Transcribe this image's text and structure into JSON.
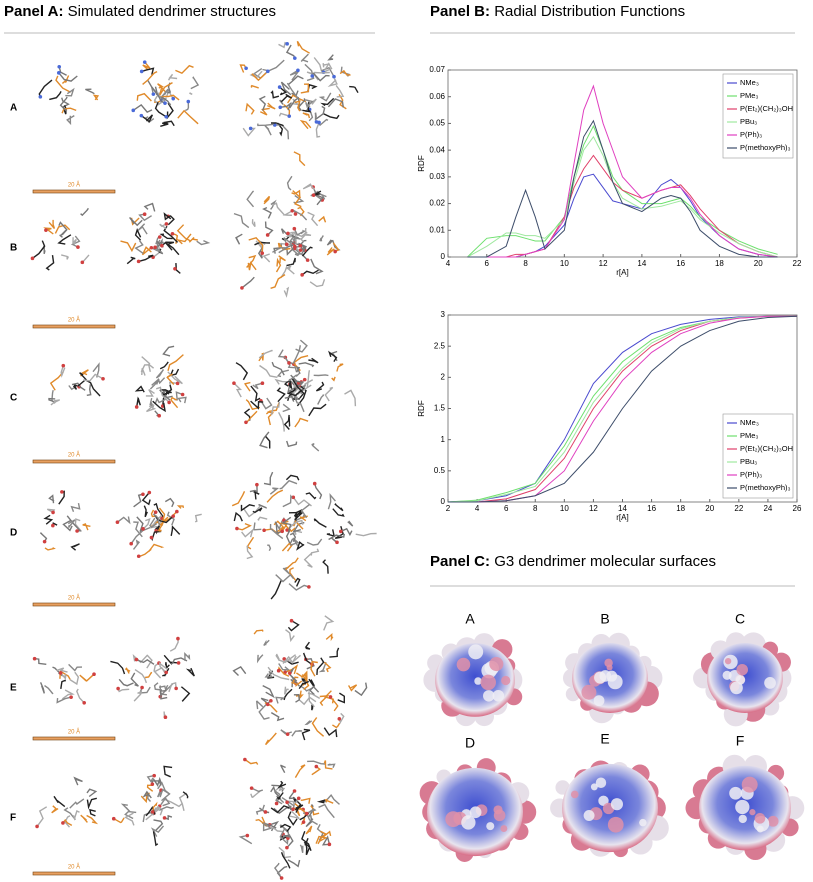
{
  "panel_a": {
    "label": "Panel A:",
    "title": "Simulated dendrimer structures",
    "rows": [
      "A",
      "B",
      "C",
      "D",
      "E",
      "F"
    ],
    "scale_label": "20 Å"
  },
  "panel_b": {
    "label": "Panel B:",
    "title": "Radial Distribution Functions"
  },
  "chart_data": [
    {
      "type": "line",
      "xlabel": "r[A]",
      "ylabel": "RDF",
      "grid": false,
      "legend": "upper right",
      "xlim": [
        4,
        22
      ],
      "xticks": [
        4,
        6,
        8,
        10,
        12,
        14,
        16,
        18,
        20,
        22
      ],
      "ylim": [
        0,
        0.07
      ],
      "yticks": [
        0,
        0.01,
        0.02,
        0.03,
        0.04,
        0.05,
        0.06,
        0.07
      ],
      "x": [
        5,
        6,
        7,
        7.5,
        8,
        8.5,
        9,
        10,
        10.5,
        11,
        11.5,
        12,
        12.5,
        13,
        14,
        15,
        15.5,
        16,
        16.5,
        17,
        18,
        19,
        20,
        21
      ],
      "series": [
        {
          "name": "NMe₃",
          "color": "#4a4acf",
          "values": [
            0,
            0,
            0,
            0,
            0.001,
            0.002,
            0.004,
            0.012,
            0.022,
            0.03,
            0.031,
            0.026,
            0.021,
            0.02,
            0.018,
            0.027,
            0.029,
            0.026,
            0.021,
            0.015,
            0.008,
            0.003,
            0.001,
            0
          ]
        },
        {
          "name": "PMe₃",
          "color": "#6ee06e",
          "values": [
            0,
            0.007,
            0.008,
            0.008,
            0.007,
            0.006,
            0.006,
            0.015,
            0.03,
            0.042,
            0.049,
            0.04,
            0.03,
            0.025,
            0.02,
            0.02,
            0.021,
            0.022,
            0.019,
            0.015,
            0.01,
            0.006,
            0.003,
            0.001
          ]
        },
        {
          "name": "P(Et₂)(CH₂)₃OH",
          "color": "#e0406a",
          "values": [
            0,
            0,
            0,
            0.001,
            0.001,
            0.002,
            0.003,
            0.015,
            0.026,
            0.033,
            0.038,
            0.033,
            0.028,
            0.025,
            0.022,
            0.025,
            0.026,
            0.027,
            0.023,
            0.018,
            0.01,
            0.005,
            0.002,
            0
          ]
        },
        {
          "name": "PBu₃",
          "color": "#9fe89f",
          "values": [
            0,
            0.004,
            0.009,
            0.009,
            0.008,
            0.008,
            0.007,
            0.014,
            0.028,
            0.04,
            0.045,
            0.038,
            0.028,
            0.022,
            0.018,
            0.019,
            0.02,
            0.021,
            0.018,
            0.014,
            0.009,
            0.005,
            0.002,
            0
          ]
        },
        {
          "name": "P(Ph)₃",
          "color": "#e040c0",
          "values": [
            0,
            0,
            0,
            0,
            0.001,
            0.002,
            0.003,
            0.014,
            0.035,
            0.055,
            0.064,
            0.05,
            0.04,
            0.03,
            0.022,
            0.025,
            0.026,
            0.026,
            0.022,
            0.016,
            0.008,
            0.003,
            0.001,
            0
          ]
        },
        {
          "name": "P(methoxyPh)₃",
          "color": "#3d4d6a",
          "values": [
            0,
            0,
            0.004,
            0.015,
            0.025,
            0.015,
            0.003,
            0.01,
            0.03,
            0.045,
            0.051,
            0.04,
            0.028,
            0.02,
            0.017,
            0.022,
            0.023,
            0.022,
            0.017,
            0.01,
            0.004,
            0.001,
            0,
            0
          ]
        }
      ]
    },
    {
      "type": "line",
      "xlabel": "r[A]",
      "ylabel": "RDF",
      "grid": false,
      "legend": "lower right",
      "xlim": [
        2,
        26
      ],
      "xticks": [
        2,
        4,
        6,
        8,
        10,
        12,
        14,
        16,
        18,
        20,
        22,
        24,
        26
      ],
      "ylim": [
        0,
        3
      ],
      "yticks": [
        0,
        0.5,
        1,
        1.5,
        2,
        2.5,
        3
      ],
      "x": [
        2,
        4,
        6,
        8,
        10,
        12,
        14,
        16,
        18,
        20,
        22,
        24,
        26
      ],
      "series": [
        {
          "name": "NMe₃",
          "color": "#4a4acf",
          "values": [
            0,
            0.02,
            0.1,
            0.3,
            1.0,
            1.9,
            2.4,
            2.7,
            2.85,
            2.93,
            2.97,
            2.98,
            2.98
          ]
        },
        {
          "name": "PMe₃",
          "color": "#6ee06e",
          "values": [
            0,
            0.03,
            0.15,
            0.3,
            0.9,
            1.7,
            2.25,
            2.6,
            2.8,
            2.9,
            2.96,
            2.98,
            2.98
          ]
        },
        {
          "name": "P(Et₂)(CH₂)₃OH",
          "color": "#e0406a",
          "values": [
            0,
            0,
            0.05,
            0.2,
            0.7,
            1.5,
            2.1,
            2.5,
            2.75,
            2.9,
            2.95,
            2.98,
            2.98
          ]
        },
        {
          "name": "PBu₃",
          "color": "#9fe89f",
          "values": [
            0,
            0.02,
            0.12,
            0.25,
            0.8,
            1.6,
            2.15,
            2.55,
            2.78,
            2.9,
            2.96,
            2.98,
            2.98
          ]
        },
        {
          "name": "P(Ph)₃",
          "color": "#e040c0",
          "values": [
            0,
            0,
            0.02,
            0.1,
            0.5,
            1.3,
            1.95,
            2.4,
            2.7,
            2.87,
            2.95,
            2.98,
            2.98
          ]
        },
        {
          "name": "P(methoxyPh)₃",
          "color": "#3d4d6a",
          "values": [
            0,
            0,
            0.02,
            0.1,
            0.3,
            0.8,
            1.5,
            2.1,
            2.5,
            2.75,
            2.9,
            2.96,
            2.98
          ]
        }
      ]
    }
  ],
  "panel_c": {
    "label": "Panel C:",
    "title": "G3 dendrimer molecular surfaces",
    "items": [
      "A",
      "B",
      "C",
      "D",
      "E",
      "F"
    ]
  }
}
